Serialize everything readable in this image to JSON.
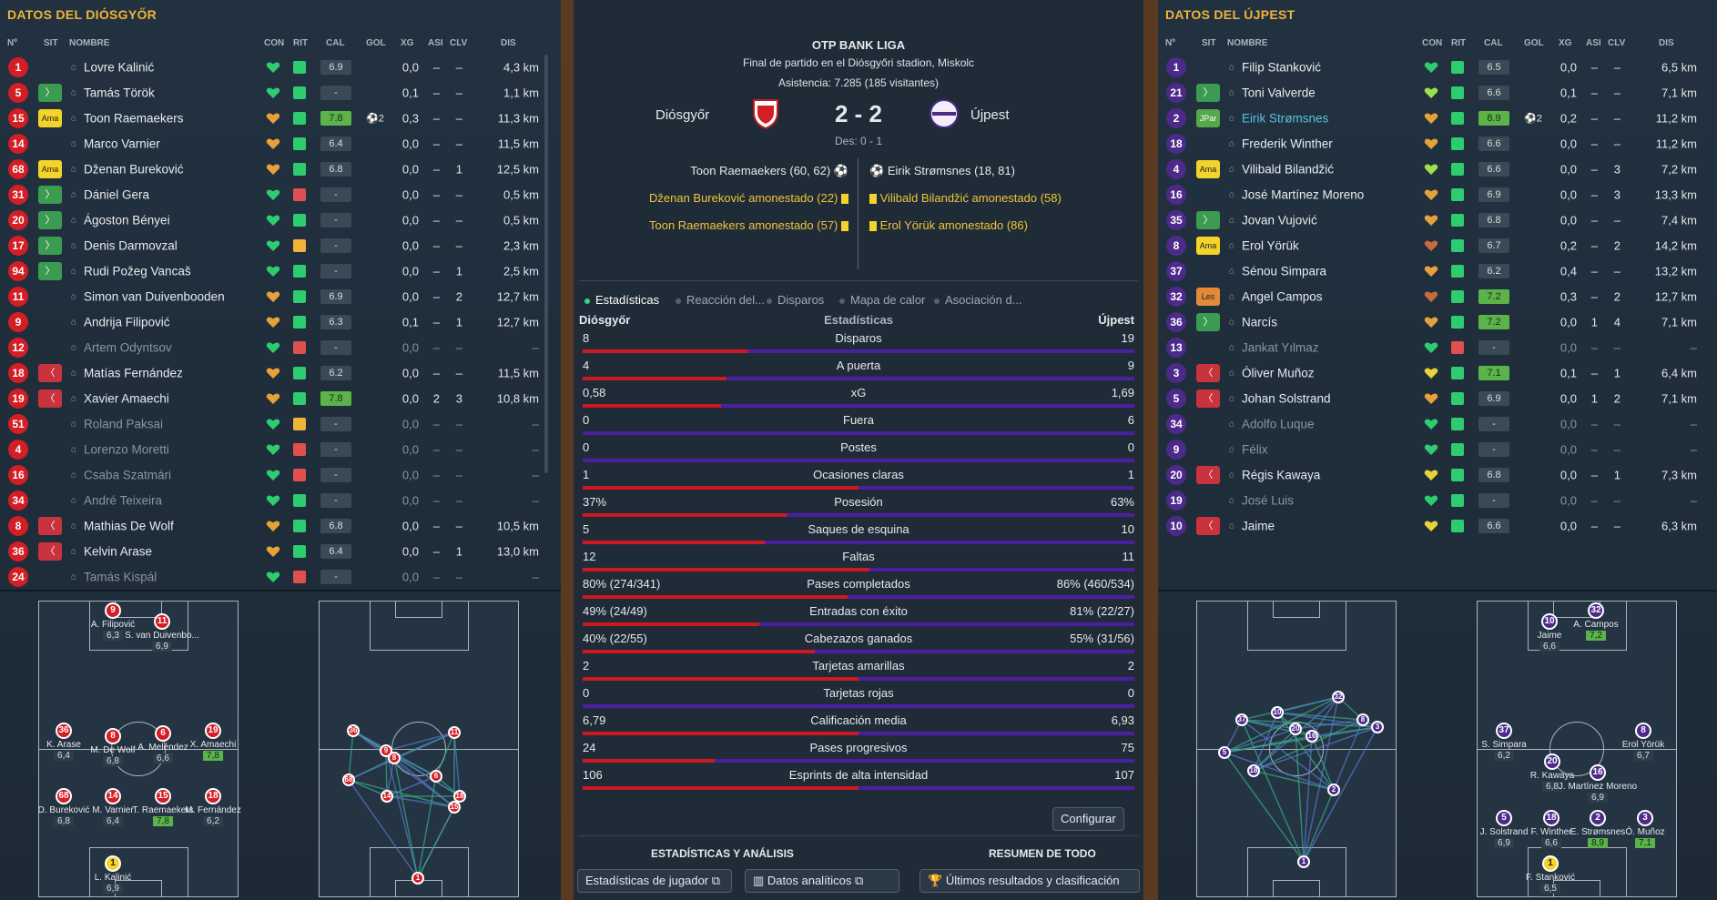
{
  "left_panel": {
    "title": "DATOS DEL DIÓSGYŐR"
  },
  "right_panel": {
    "title": "DATOS DEL ÚJPEST"
  },
  "columns": {
    "num": "Nº",
    "sit": "SIT",
    "name": "NOMBRE",
    "con": "CON",
    "rit": "RIT",
    "cal": "CAL",
    "gol": "GOL",
    "xg": "XG",
    "asi": "ASI",
    "clv": "CLV",
    "dis": "DIS"
  },
  "home_players": [
    {
      "num": "1",
      "sit": "",
      "name": "Lovre Kalinić",
      "heart": "#2ecc71",
      "rit": "#2ecc71",
      "cal": "6.9",
      "calg": false,
      "gol": "",
      "xg": "0,0",
      "asi": "–",
      "clv": "–",
      "dis": "4,3 km",
      "dim": false
    },
    {
      "num": "5",
      "sit": "in",
      "name": "Tamás Török",
      "heart": "#2ecc71",
      "rit": "#2ecc71",
      "cal": "-",
      "calg": false,
      "gol": "",
      "xg": "0,1",
      "asi": "–",
      "clv": "–",
      "dis": "1,1 km",
      "dim": false
    },
    {
      "num": "15",
      "sit": "Ama",
      "name": "Toon Raemaekers",
      "heart": "#e6a23a",
      "rit": "#2ecc71",
      "cal": "7.8",
      "calg": true,
      "gol": "⚽2",
      "xg": "0,3",
      "asi": "–",
      "clv": "–",
      "dis": "11,3 km",
      "dim": false
    },
    {
      "num": "14",
      "sit": "",
      "name": "Marco Varnier",
      "heart": "#e6a23a",
      "rit": "#2ecc71",
      "cal": "6.4",
      "calg": false,
      "gol": "",
      "xg": "0,0",
      "asi": "–",
      "clv": "–",
      "dis": "11,5 km",
      "dim": false
    },
    {
      "num": "68",
      "sit": "Ama",
      "name": "Dženan Bureković",
      "heart": "#e6a23a",
      "rit": "#2ecc71",
      "cal": "6.8",
      "calg": false,
      "gol": "",
      "xg": "0,0",
      "asi": "–",
      "clv": "1",
      "dis": "12,5 km",
      "dim": false
    },
    {
      "num": "31",
      "sit": "in",
      "name": "Dániel Gera",
      "heart": "#2ecc71",
      "rit": "#e05050",
      "cal": "-",
      "calg": false,
      "gol": "",
      "xg": "0,0",
      "asi": "–",
      "clv": "–",
      "dis": "0,5 km",
      "dim": false
    },
    {
      "num": "20",
      "sit": "in",
      "name": "Ágoston Bényei",
      "heart": "#2ecc71",
      "rit": "#2ecc71",
      "cal": "-",
      "calg": false,
      "gol": "",
      "xg": "0,0",
      "asi": "–",
      "clv": "–",
      "dis": "0,5 km",
      "dim": false
    },
    {
      "num": "17",
      "sit": "in",
      "name": "Denis Darmovzal",
      "heart": "#2ecc71",
      "rit": "#f0b43a",
      "cal": "-",
      "calg": false,
      "gol": "",
      "xg": "0,0",
      "asi": "–",
      "clv": "–",
      "dis": "2,3 km",
      "dim": false
    },
    {
      "num": "94",
      "sit": "in",
      "name": "Rudi Požeg Vancaš",
      "heart": "#2ecc71",
      "rit": "#2ecc71",
      "cal": "-",
      "calg": false,
      "gol": "",
      "xg": "0,0",
      "asi": "–",
      "clv": "1",
      "dis": "2,5 km",
      "dim": false
    },
    {
      "num": "11",
      "sit": "",
      "name": "Simon van Duivenbooden",
      "heart": "#e6a23a",
      "rit": "#2ecc71",
      "cal": "6.9",
      "calg": false,
      "gol": "",
      "xg": "0,0",
      "asi": "–",
      "clv": "2",
      "dis": "12,7 km",
      "dim": false
    },
    {
      "num": "9",
      "sit": "",
      "name": "Andrija Filipović",
      "heart": "#e6a23a",
      "rit": "#2ecc71",
      "cal": "6.3",
      "calg": false,
      "gol": "",
      "xg": "0,1",
      "asi": "–",
      "clv": "1",
      "dis": "12,7 km",
      "dim": false
    },
    {
      "num": "12",
      "sit": "",
      "name": "Artem Odyntsov",
      "heart": "#2ecc71",
      "rit": "#e05050",
      "cal": "-",
      "calg": false,
      "gol": "",
      "xg": "0,0",
      "asi": "–",
      "clv": "–",
      "dis": "–",
      "dim": true
    },
    {
      "num": "18",
      "sit": "out",
      "name": "Matías Fernández",
      "heart": "#e6a23a",
      "rit": "#2ecc71",
      "cal": "6.2",
      "calg": false,
      "gol": "",
      "xg": "0,0",
      "asi": "–",
      "clv": "–",
      "dis": "11,5 km",
      "dim": false
    },
    {
      "num": "19",
      "sit": "out",
      "name": "Xavier Amaechi",
      "heart": "#e6a23a",
      "rit": "#2ecc71",
      "cal": "7.8",
      "calg": true,
      "gol": "",
      "xg": "0,0",
      "asi": "2",
      "clv": "3",
      "dis": "10,8 km",
      "dim": false
    },
    {
      "num": "51",
      "sit": "",
      "name": "Roland Paksai",
      "heart": "#2ecc71",
      "rit": "#f0b43a",
      "cal": "-",
      "calg": false,
      "gol": "",
      "xg": "0,0",
      "asi": "–",
      "clv": "–",
      "dis": "–",
      "dim": true
    },
    {
      "num": "4",
      "sit": "",
      "name": "Lorenzo Moretti",
      "heart": "#2ecc71",
      "rit": "#e05050",
      "cal": "-",
      "calg": false,
      "gol": "",
      "xg": "0,0",
      "asi": "–",
      "clv": "–",
      "dis": "–",
      "dim": true
    },
    {
      "num": "16",
      "sit": "",
      "name": "Csaba Szatmári",
      "heart": "#2ecc71",
      "rit": "#e05050",
      "cal": "-",
      "calg": false,
      "gol": "",
      "xg": "0,0",
      "asi": "–",
      "clv": "–",
      "dis": "–",
      "dim": true
    },
    {
      "num": "34",
      "sit": "",
      "name": "André Teixeira",
      "heart": "#2ecc71",
      "rit": "#2ecc71",
      "cal": "-",
      "calg": false,
      "gol": "",
      "xg": "0,0",
      "asi": "–",
      "clv": "–",
      "dis": "–",
      "dim": true
    },
    {
      "num": "8",
      "sit": "out",
      "name": "Mathias De Wolf",
      "heart": "#e6a23a",
      "rit": "#2ecc71",
      "cal": "6.8",
      "calg": false,
      "gol": "",
      "xg": "0,0",
      "asi": "–",
      "clv": "–",
      "dis": "10,5 km",
      "dim": false
    },
    {
      "num": "36",
      "sit": "out",
      "name": "Kelvin Arase",
      "heart": "#e6a23a",
      "rit": "#2ecc71",
      "cal": "6.4",
      "calg": false,
      "gol": "",
      "xg": "0,0",
      "asi": "–",
      "clv": "1",
      "dis": "13,0 km",
      "dim": false
    },
    {
      "num": "24",
      "sit": "",
      "name": "Tamás Kispál",
      "heart": "#2ecc71",
      "rit": "#e05050",
      "cal": "-",
      "calg": false,
      "gol": "",
      "xg": "0,0",
      "asi": "–",
      "clv": "–",
      "dis": "–",
      "dim": true
    }
  ],
  "away_players": [
    {
      "num": "1",
      "sit": "",
      "name": "Filip Stanković",
      "heart": "#2ecc71",
      "rit": "#2ecc71",
      "cal": "6.5",
      "calg": false,
      "gol": "",
      "xg": "0,0",
      "asi": "–",
      "clv": "–",
      "dis": "6,5 km",
      "dim": false,
      "hl": false
    },
    {
      "num": "21",
      "sit": "in",
      "name": "Toni Valverde",
      "heart": "#9be24a",
      "rit": "#2ecc71",
      "cal": "6.6",
      "calg": false,
      "gol": "",
      "xg": "0,1",
      "asi": "–",
      "clv": "–",
      "dis": "7,1 km",
      "dim": false,
      "hl": false
    },
    {
      "num": "2",
      "sit": "JPar",
      "name": "Eirik Strømsnes",
      "heart": "#e6a23a",
      "rit": "#2ecc71",
      "cal": "8.9",
      "calg": true,
      "gol": "⚽2",
      "xg": "0,2",
      "asi": "–",
      "clv": "–",
      "dis": "11,2 km",
      "dim": false,
      "hl": true
    },
    {
      "num": "18",
      "sit": "",
      "name": "Frederik Winther",
      "heart": "#e6a23a",
      "rit": "#2ecc71",
      "cal": "6.6",
      "calg": false,
      "gol": "",
      "xg": "0,0",
      "asi": "–",
      "clv": "–",
      "dis": "11,2 km",
      "dim": false,
      "hl": false
    },
    {
      "num": "4",
      "sit": "Ama",
      "name": "Vilibald Bilandžić",
      "heart": "#9be24a",
      "rit": "#2ecc71",
      "cal": "6.6",
      "calg": false,
      "gol": "",
      "xg": "0,0",
      "asi": "–",
      "clv": "3",
      "dis": "7,2 km",
      "dim": false,
      "hl": false
    },
    {
      "num": "16",
      "sit": "",
      "name": "José Martínez Moreno",
      "heart": "#e6a23a",
      "rit": "#2ecc71",
      "cal": "6.9",
      "calg": false,
      "gol": "",
      "xg": "0,0",
      "asi": "–",
      "clv": "3",
      "dis": "13,3 km",
      "dim": false,
      "hl": false
    },
    {
      "num": "35",
      "sit": "in",
      "name": "Jovan Vujović",
      "heart": "#e6a23a",
      "rit": "#2ecc71",
      "cal": "6.8",
      "calg": false,
      "gol": "",
      "xg": "0,0",
      "asi": "–",
      "clv": "–",
      "dis": "7,4 km",
      "dim": false,
      "hl": false
    },
    {
      "num": "8",
      "sit": "Ama",
      "name": "Erol Yörük",
      "heart": "#c86a3a",
      "rit": "#2ecc71",
      "cal": "6.7",
      "calg": false,
      "gol": "",
      "xg": "0,2",
      "asi": "–",
      "clv": "2",
      "dis": "14,2 km",
      "dim": false,
      "hl": false
    },
    {
      "num": "37",
      "sit": "",
      "name": "Sénou Simpara",
      "heart": "#e6a23a",
      "rit": "#2ecc71",
      "cal": "6.2",
      "calg": false,
      "gol": "",
      "xg": "0,4",
      "asi": "–",
      "clv": "–",
      "dis": "13,2 km",
      "dim": false,
      "hl": false
    },
    {
      "num": "32",
      "sit": "Les",
      "name": "Angel Campos",
      "heart": "#c86a3a",
      "rit": "#2ecc71",
      "cal": "7.2",
      "calg": true,
      "gol": "",
      "xg": "0,3",
      "asi": "–",
      "clv": "2",
      "dis": "12,7 km",
      "dim": false,
      "hl": false
    },
    {
      "num": "36",
      "sit": "in",
      "name": "Narcís",
      "heart": "#e6a23a",
      "rit": "#2ecc71",
      "cal": "7.2",
      "calg": true,
      "gol": "",
      "xg": "0,0",
      "asi": "1",
      "clv": "4",
      "dis": "7,1 km",
      "dim": false,
      "hl": false
    },
    {
      "num": "13",
      "sit": "",
      "name": "Jankat Yılmaz",
      "heart": "#2ecc71",
      "rit": "#e05050",
      "cal": "-",
      "calg": false,
      "gol": "",
      "xg": "0,0",
      "asi": "–",
      "clv": "–",
      "dis": "–",
      "dim": true,
      "hl": false
    },
    {
      "num": "3",
      "sit": "out",
      "name": "Óliver Muñoz",
      "heart": "#e6d23a",
      "rit": "#2ecc71",
      "cal": "7.1",
      "calg": true,
      "gol": "",
      "xg": "0,1",
      "asi": "–",
      "clv": "1",
      "dis": "6,4 km",
      "dim": false,
      "hl": false
    },
    {
      "num": "5",
      "sit": "out",
      "name": "Johan Solstrand",
      "heart": "#e6a23a",
      "rit": "#2ecc71",
      "cal": "6.9",
      "calg": false,
      "gol": "",
      "xg": "0,0",
      "asi": "1",
      "clv": "2",
      "dis": "7,1 km",
      "dim": false,
      "hl": false
    },
    {
      "num": "34",
      "sit": "",
      "name": "Adolfo Luque",
      "heart": "#2ecc71",
      "rit": "#2ecc71",
      "cal": "-",
      "calg": false,
      "gol": "",
      "xg": "0,0",
      "asi": "–",
      "clv": "–",
      "dis": "–",
      "dim": true,
      "hl": false
    },
    {
      "num": "9",
      "sit": "",
      "name": "Félix",
      "heart": "#2ecc71",
      "rit": "#2ecc71",
      "cal": "-",
      "calg": false,
      "gol": "",
      "xg": "0,0",
      "asi": "–",
      "clv": "–",
      "dis": "–",
      "dim": true,
      "hl": false
    },
    {
      "num": "20",
      "sit": "out",
      "name": "Régis Kawaya",
      "heart": "#e6d23a",
      "rit": "#2ecc71",
      "cal": "6.8",
      "calg": false,
      "gol": "",
      "xg": "0,0",
      "asi": "–",
      "clv": "1",
      "dis": "7,3 km",
      "dim": false,
      "hl": false
    },
    {
      "num": "19",
      "sit": "",
      "name": "José Luis",
      "heart": "#2ecc71",
      "rit": "#2ecc71",
      "cal": "-",
      "calg": false,
      "gol": "",
      "xg": "0,0",
      "asi": "–",
      "clv": "–",
      "dis": "–",
      "dim": true,
      "hl": false
    },
    {
      "num": "10",
      "sit": "out",
      "name": "Jaime",
      "heart": "#e6d23a",
      "rit": "#2ecc71",
      "cal": "6.6",
      "calg": false,
      "gol": "",
      "xg": "0,0",
      "asi": "–",
      "clv": "–",
      "dis": "6,3 km",
      "dim": false,
      "hl": false
    }
  ],
  "match": {
    "league": "OTP BANK LIGA",
    "venue": "Final de partido en el Diósgyőri stadion, Miskolc",
    "attendance": "Asistencia: 7.285 (185 visitantes)",
    "home": "Diósgyőr",
    "away": "Újpest",
    "score": "2 - 2",
    "halftime": "Des: 0 - 1",
    "home_events": [
      "Toon Raemaekers (60, 62)",
      "Dženan Bureković amonestado (22)",
      "Toon Raemaekers amonestado (57)"
    ],
    "away_events": [
      "Eirik Strømsnes (18, 81)",
      "Vilibald Bilandžić amonestado (58)",
      "Erol Yörük amonestado (86)"
    ]
  },
  "tabs": [
    "Estadísticas",
    "Reacción del...",
    "Disparos",
    "Mapa de calor",
    "Asociación d..."
  ],
  "stats_header": {
    "home": "Diósgyőr",
    "title": "Estadísticas",
    "away": "Újpest"
  },
  "stats": [
    {
      "label": "Disparos",
      "home": "8",
      "away": "19",
      "frac": 0.3
    },
    {
      "label": "A puerta",
      "home": "4",
      "away": "9",
      "frac": 0.26
    },
    {
      "label": "xG",
      "home": "0,58",
      "away": "1,69",
      "frac": 0.25
    },
    {
      "label": "Fuera",
      "home": "0",
      "away": "6",
      "frac": 0.0
    },
    {
      "label": "Postes",
      "home": "0",
      "away": "0",
      "frac": 0.0
    },
    {
      "label": "Ocasiones claras",
      "home": "1",
      "away": "1",
      "frac": 0.5
    },
    {
      "label": "Posesión",
      "home": "37%",
      "away": "63%",
      "frac": 0.37
    },
    {
      "label": "Saques de esquina",
      "home": "5",
      "away": "10",
      "frac": 0.33
    },
    {
      "label": "Faltas",
      "home": "12",
      "away": "11",
      "frac": 0.52
    },
    {
      "label": "Pases completados",
      "home": "80% (274/341)",
      "away": "86% (460/534)",
      "frac": 0.48
    },
    {
      "label": "Entradas con éxito",
      "home": "49% (24/49)",
      "away": "81% (22/27)",
      "frac": 0.32
    },
    {
      "label": "Cabezazos ganados",
      "home": "40% (22/55)",
      "away": "55% (31/56)",
      "frac": 0.42
    },
    {
      "label": "Tarjetas amarillas",
      "home": "2",
      "away": "2",
      "frac": 0.5
    },
    {
      "label": "Tarjetas rojas",
      "home": "0",
      "away": "0",
      "frac": 0.0
    },
    {
      "label": "Calificación media",
      "home": "6,79",
      "away": "6,93",
      "frac": 0.5
    },
    {
      "label": "Pases progresivos",
      "home": "24",
      "away": "75",
      "frac": 0.24
    },
    {
      "label": "Esprints de alta intensidad",
      "home": "106",
      "away": "107",
      "frac": 0.5
    }
  ],
  "buttons": {
    "configure": "Configurar",
    "player_stats": "Estadísticas de jugador",
    "analytics": "Datos analíticos",
    "results": "Últimos resultados y clasificación"
  },
  "sections": {
    "left": "ESTADÍSTICAS Y ANÁLISIS",
    "right": "RESUMEN DE TODO"
  },
  "home_formation": [
    {
      "num": "9",
      "name": "A. Filipović",
      "rate": "6,3",
      "g": false
    },
    {
      "num": "11",
      "name": "S. van Duivenbo...",
      "rate": "6,9",
      "g": false
    },
    {
      "num": "36",
      "name": "K. Arase",
      "rate": "6,4",
      "g": false
    },
    {
      "num": "8",
      "name": "M. De Wolf",
      "rate": "6,8",
      "g": false
    },
    {
      "num": "6",
      "name": "A. Meléndez",
      "rate": "6,6",
      "g": false
    },
    {
      "num": "19",
      "name": "X. Amaechi",
      "rate": "7,8",
      "g": true
    },
    {
      "num": "68",
      "name": "D. Bureković",
      "rate": "6,8",
      "g": false
    },
    {
      "num": "14",
      "name": "M. Varnier",
      "rate": "6,4",
      "g": false
    },
    {
      "num": "15",
      "name": "T. Raemaekers",
      "rate": "7,8",
      "g": true
    },
    {
      "num": "18",
      "name": "M. Fernández",
      "rate": "6,2",
      "g": false
    },
    {
      "num": "1",
      "name": "L. Kalinić",
      "rate": "6,9",
      "g": false
    }
  ],
  "away_formation": [
    {
      "num": "10",
      "name": "Jaime",
      "rate": "6,6",
      "g": false
    },
    {
      "num": "32",
      "name": "A. Campos",
      "rate": "7,2",
      "g": true
    },
    {
      "num": "37",
      "name": "S. Simpara",
      "rate": "6,2",
      "g": false
    },
    {
      "num": "8",
      "name": "Erol Yörük",
      "rate": "6,7",
      "g": false
    },
    {
      "num": "20",
      "name": "R. Kawaya",
      "rate": "6,8",
      "g": false
    },
    {
      "num": "16",
      "name": "J. Martínez Moreno",
      "rate": "6,9",
      "g": false
    },
    {
      "num": "5",
      "name": "J. Solstrand",
      "rate": "6,9",
      "g": false
    },
    {
      "num": "18",
      "name": "F. Winther",
      "rate": "6,6",
      "g": false
    },
    {
      "num": "2",
      "name": "E. Strømsnes",
      "rate": "8,9",
      "g": true
    },
    {
      "num": "3",
      "name": "Ó. Muñoz",
      "rate": "7,1",
      "g": true
    },
    {
      "num": "1",
      "name": "F. Stanković",
      "rate": "6,5",
      "g": false
    }
  ]
}
